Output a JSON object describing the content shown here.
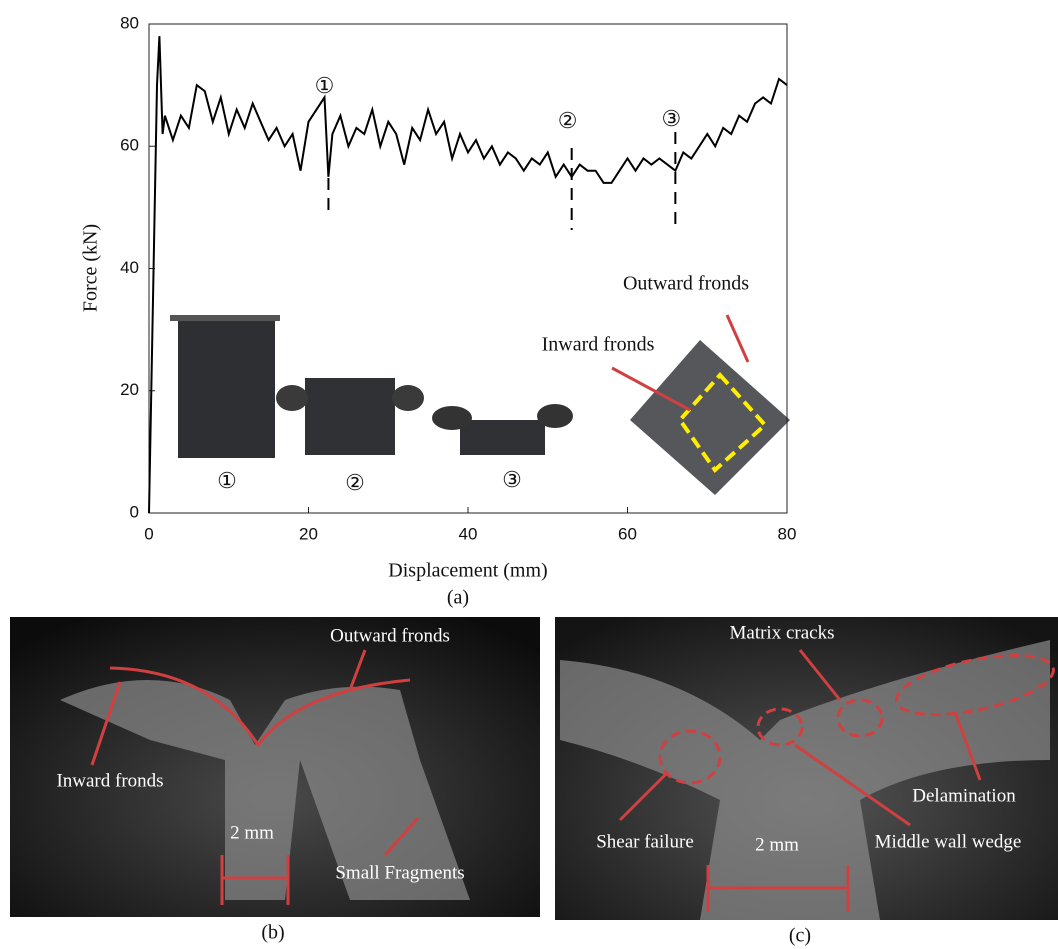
{
  "chart_data": {
    "type": "line",
    "x_label": "Displacement (mm)",
    "y_label": "Force (kN)",
    "caption": "(a)",
    "x": [
      0,
      0.5,
      1,
      1.3,
      1.7,
      2,
      3,
      4,
      5,
      6,
      7,
      8,
      9,
      10,
      11,
      12,
      13,
      14,
      15,
      16,
      17,
      18,
      19,
      20,
      21,
      22,
      22.5,
      23,
      24,
      25,
      26,
      27,
      28,
      29,
      30,
      31,
      32,
      33,
      34,
      35,
      36,
      37,
      38,
      39,
      40,
      41,
      42,
      43,
      44,
      45,
      46,
      47,
      48,
      49,
      50,
      51,
      52,
      53,
      54,
      55,
      56,
      57,
      58,
      59,
      60,
      61,
      62,
      63,
      64,
      65,
      66,
      67,
      68,
      69,
      70,
      71,
      72,
      73,
      74,
      75,
      76,
      77,
      78,
      79,
      80
    ],
    "series": [
      {
        "color": "#000000",
        "values": [
          0,
          35,
          70,
          78,
          62,
          65,
          61,
          65,
          63,
          70,
          69,
          64,
          68,
          62,
          66,
          63,
          67,
          64,
          61,
          63,
          60,
          62,
          56,
          64,
          66,
          68,
          55,
          62,
          65,
          60,
          63,
          62,
          66,
          60,
          64,
          62,
          57,
          63,
          61,
          66,
          62,
          64,
          58,
          62,
          59,
          61,
          58,
          60,
          57,
          59,
          58,
          56,
          58,
          57,
          59,
          55,
          57,
          55,
          57,
          56,
          56,
          54,
          54,
          56,
          58,
          56,
          58,
          57,
          58,
          57,
          56,
          59,
          58,
          60,
          62,
          60,
          63,
          62,
          65,
          64,
          67,
          68,
          67,
          71,
          70
        ]
      }
    ],
    "xlim": [
      0,
      80
    ],
    "ylim": [
      0,
      80
    ],
    "xticks": [
      0,
      20,
      40,
      60,
      80
    ],
    "yticks": [
      0,
      20,
      40,
      60,
      80
    ],
    "markers": [
      {
        "label": "①",
        "x": 22.5
      },
      {
        "label": "②",
        "x": 53
      },
      {
        "label": "③",
        "x": 66
      }
    ],
    "inset_annotations": [
      "Outward fronds",
      "Inward fronds"
    ]
  },
  "panel_b": {
    "caption": "(b)",
    "labels": [
      "Outward fronds",
      "Inward fronds",
      "Small Fragments"
    ],
    "scale": "2 mm"
  },
  "panel_c": {
    "caption": "(c)",
    "labels": [
      "Matrix cracks",
      "Delamination",
      "Shear failure",
      "Middle wall wedge"
    ],
    "scale": "2 mm"
  }
}
